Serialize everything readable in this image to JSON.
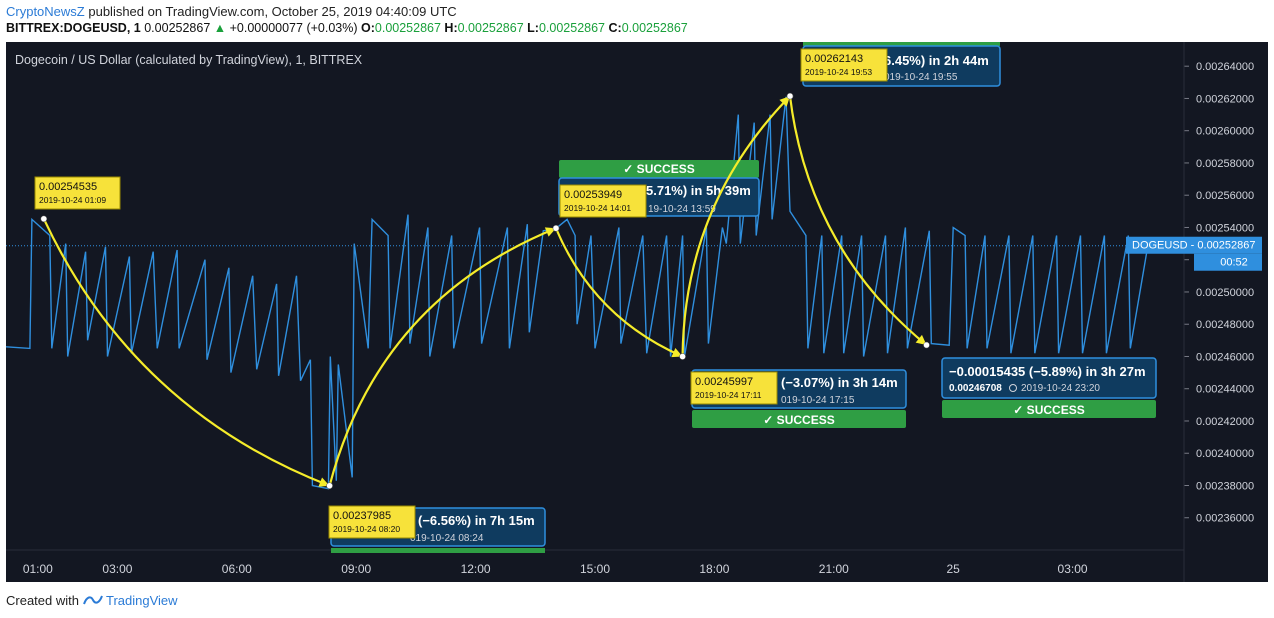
{
  "header": {
    "brand": "CryptoNewsZ",
    "published": " published on TradingView.com, October 25, 2019 04:40:09 UTC",
    "symbol": "BITTREX:DOGEUSD, 1",
    "price": "0.00252867",
    "change": "+0.00000077 (+0.03%)",
    "o_label": "O:",
    "o_value": "0.00252867",
    "h_label": "H:",
    "h_value": "0.00252867",
    "l_label": "L:",
    "l_value": "0.00252867",
    "c_label": "C:",
    "c_value": "0.00252867"
  },
  "footer": {
    "created_with": "Created with",
    "tradingview": "TradingView"
  },
  "colors": {
    "background": "#131722",
    "line": "#2f8fde",
    "arrow": "#f5ec2a",
    "label_yellow": "#f7e23a",
    "box_blue": "#0f3b5f",
    "box_border": "#2f8fde",
    "success_green": "#2f9e44",
    "text_light": "#d1d4dc"
  },
  "chart_data": {
    "type": "line",
    "title": "Dogecoin / US Dollar (calculated by TradingView), 1, BITTREX",
    "ylim": [
      0.00234,
      0.002655
    ],
    "xlim": [
      0.2,
      29.8
    ],
    "x_ticks": [
      {
        "h": 1,
        "label": "01:00"
      },
      {
        "h": 3,
        "label": "03:00"
      },
      {
        "h": 6,
        "label": "06:00"
      },
      {
        "h": 9,
        "label": "09:00"
      },
      {
        "h": 12,
        "label": "12:00"
      },
      {
        "h": 15,
        "label": "15:00"
      },
      {
        "h": 18,
        "label": "18:00"
      },
      {
        "h": 21,
        "label": "21:00"
      },
      {
        "h": 24,
        "label": "25"
      },
      {
        "h": 27,
        "label": "03:00"
      }
    ],
    "y_ticks": [
      0.00236,
      0.00238,
      0.0024,
      0.00242,
      0.00244,
      0.00246,
      0.00248,
      0.0025,
      0.00252,
      0.00254,
      0.00256,
      0.00258,
      0.0026,
      0.00262,
      0.00264
    ],
    "y_tick_labels": [
      "0.00236000",
      "0.00238000",
      "0.00240000",
      "0.00242000",
      "0.00244000",
      "0.00246000",
      "0.00248000",
      "0.00250000",
      "0.00252000",
      "0.00254000",
      "0.00256000",
      "0.00258000",
      "0.00260000",
      "0.00262000",
      "0.00264000"
    ],
    "series": [
      {
        "name": "DOGEUSD",
        "x": [
          0.2,
          0.8,
          0.85,
          1.3,
          1.35,
          1.7,
          1.75,
          2.2,
          2.25,
          2.7,
          2.75,
          3.3,
          3.35,
          3.9,
          4.0,
          4.5,
          4.55,
          5.2,
          5.25,
          5.8,
          5.85,
          6.4,
          6.5,
          7.0,
          7.05,
          7.5,
          7.6,
          7.85,
          7.9,
          8.3,
          8.35,
          8.5,
          8.55,
          8.9,
          8.95,
          9.3,
          9.4,
          9.8,
          9.85,
          10.3,
          10.35,
          10.8,
          10.85,
          11.4,
          11.45,
          12.1,
          12.15,
          12.8,
          12.85,
          13.3,
          13.35,
          13.7,
          14.0,
          14.3,
          14.5,
          14.55,
          14.9,
          15.0,
          15.6,
          15.65,
          16.2,
          16.3,
          16.8,
          16.9,
          17.2,
          17.25,
          17.8,
          17.85,
          18.2,
          18.3,
          18.6,
          18.65,
          19.0,
          19.05,
          19.4,
          19.45,
          19.8,
          19.9,
          20.3,
          20.35,
          20.7,
          20.75,
          21.2,
          21.25,
          21.7,
          21.75,
          22.3,
          22.35,
          22.8,
          22.85,
          23.4,
          23.45,
          23.9,
          24.0,
          24.3,
          24.35,
          24.8,
          24.85,
          25.4,
          25.45,
          26.0,
          26.05,
          26.6,
          26.65,
          27.2,
          27.25,
          27.8,
          27.85,
          28.4,
          28.45,
          28.9,
          29.0,
          29.8
        ],
        "y": [
          0.002466,
          0.002465,
          0.002545,
          0.002535,
          0.002465,
          0.00253,
          0.00246,
          0.002525,
          0.00247,
          0.002528,
          0.00246,
          0.002522,
          0.002462,
          0.002525,
          0.002465,
          0.002526,
          0.002465,
          0.00252,
          0.002458,
          0.002515,
          0.00245,
          0.00251,
          0.002452,
          0.002505,
          0.002448,
          0.00251,
          0.002445,
          0.002458,
          0.00238,
          0.002378,
          0.00246,
          0.002383,
          0.002455,
          0.002385,
          0.00253,
          0.002465,
          0.002545,
          0.002535,
          0.002465,
          0.002548,
          0.002468,
          0.00254,
          0.00246,
          0.002535,
          0.002465,
          0.00254,
          0.002468,
          0.00254,
          0.002465,
          0.002542,
          0.002475,
          0.002538,
          0.002539,
          0.002545,
          0.002535,
          0.00248,
          0.002535,
          0.002465,
          0.00254,
          0.002468,
          0.002535,
          0.002462,
          0.002535,
          0.00246,
          0.002535,
          0.00246,
          0.00254,
          0.002468,
          0.00254,
          0.00253,
          0.00261,
          0.00253,
          0.002605,
          0.002535,
          0.00261,
          0.002545,
          0.002621,
          0.00255,
          0.002535,
          0.002465,
          0.002535,
          0.002462,
          0.002535,
          0.002462,
          0.002535,
          0.00246,
          0.002535,
          0.002462,
          0.00254,
          0.002465,
          0.002538,
          0.002468,
          0.002467,
          0.00254,
          0.002535,
          0.002465,
          0.002535,
          0.002465,
          0.002535,
          0.002462,
          0.002535,
          0.002462,
          0.002535,
          0.002462,
          0.002535,
          0.002462,
          0.002535,
          0.002462,
          0.002535,
          0.002465,
          0.00253,
          0.00252867,
          0.00252867
        ]
      }
    ],
    "last_price_label": {
      "symbol": "DOGEUSD",
      "price": "0.00252867",
      "countdown": "00:52",
      "value": 0.00252867
    },
    "annotations": [
      {
        "from": {
          "h": 1.15,
          "v": 0.00254535
        },
        "to": {
          "h": 8.33,
          "v": 0.00237985
        },
        "curve": 0.2
      },
      {
        "from": {
          "h": 8.33,
          "v": 0.00237985
        },
        "to": {
          "h": 14.02,
          "v": 0.00253949
        },
        "curve": -0.25
      },
      {
        "from": {
          "h": 14.02,
          "v": 0.00253949
        },
        "to": {
          "h": 17.2,
          "v": 0.00245997
        },
        "curve": 0.2
      },
      {
        "from": {
          "h": 17.2,
          "v": 0.00245997
        },
        "to": {
          "h": 19.9,
          "v": 0.00262143
        },
        "curve": -0.2
      },
      {
        "from": {
          "h": 19.9,
          "v": 0.00262143
        },
        "to": {
          "h": 23.33,
          "v": 0.00246708
        },
        "curve": 0.2
      }
    ],
    "labels": {
      "y1_price": "0.00254535",
      "y1_date": "2019-10-24 01:09",
      "y2_price": "0.00237985",
      "y2_date": "2019-10-24 08:20",
      "y3_price": "0.00253949",
      "y3_date": "2019-10-24 14:01",
      "y4_price": "0.00245997",
      "y4_date": "2019-10-24 17:11",
      "y5_price": "0.00262143",
      "y5_date": "2019-10-24 19:53",
      "b1_line1": "(−6.56%) in 7h 15m",
      "b1_line2": "019-10-24 08:24",
      "b2_line1": "5.71%) in 5h 39m",
      "b2_line2": "19-10-24 13:59",
      "b3_line1": "(−3.07%) in 3h 14m",
      "b3_line2": "019-10-24 17:15",
      "b4_line1": "6.45%) in 2h 44m",
      "b4_line2": "019-10-24 19:55",
      "b5_line1": "−0.00015435 (−5.89%) in 3h 27m",
      "b5_line2a": "0.00246708",
      "b5_line2b": "2019-10-24 23:20",
      "success": "✓ SUCCESS"
    }
  }
}
